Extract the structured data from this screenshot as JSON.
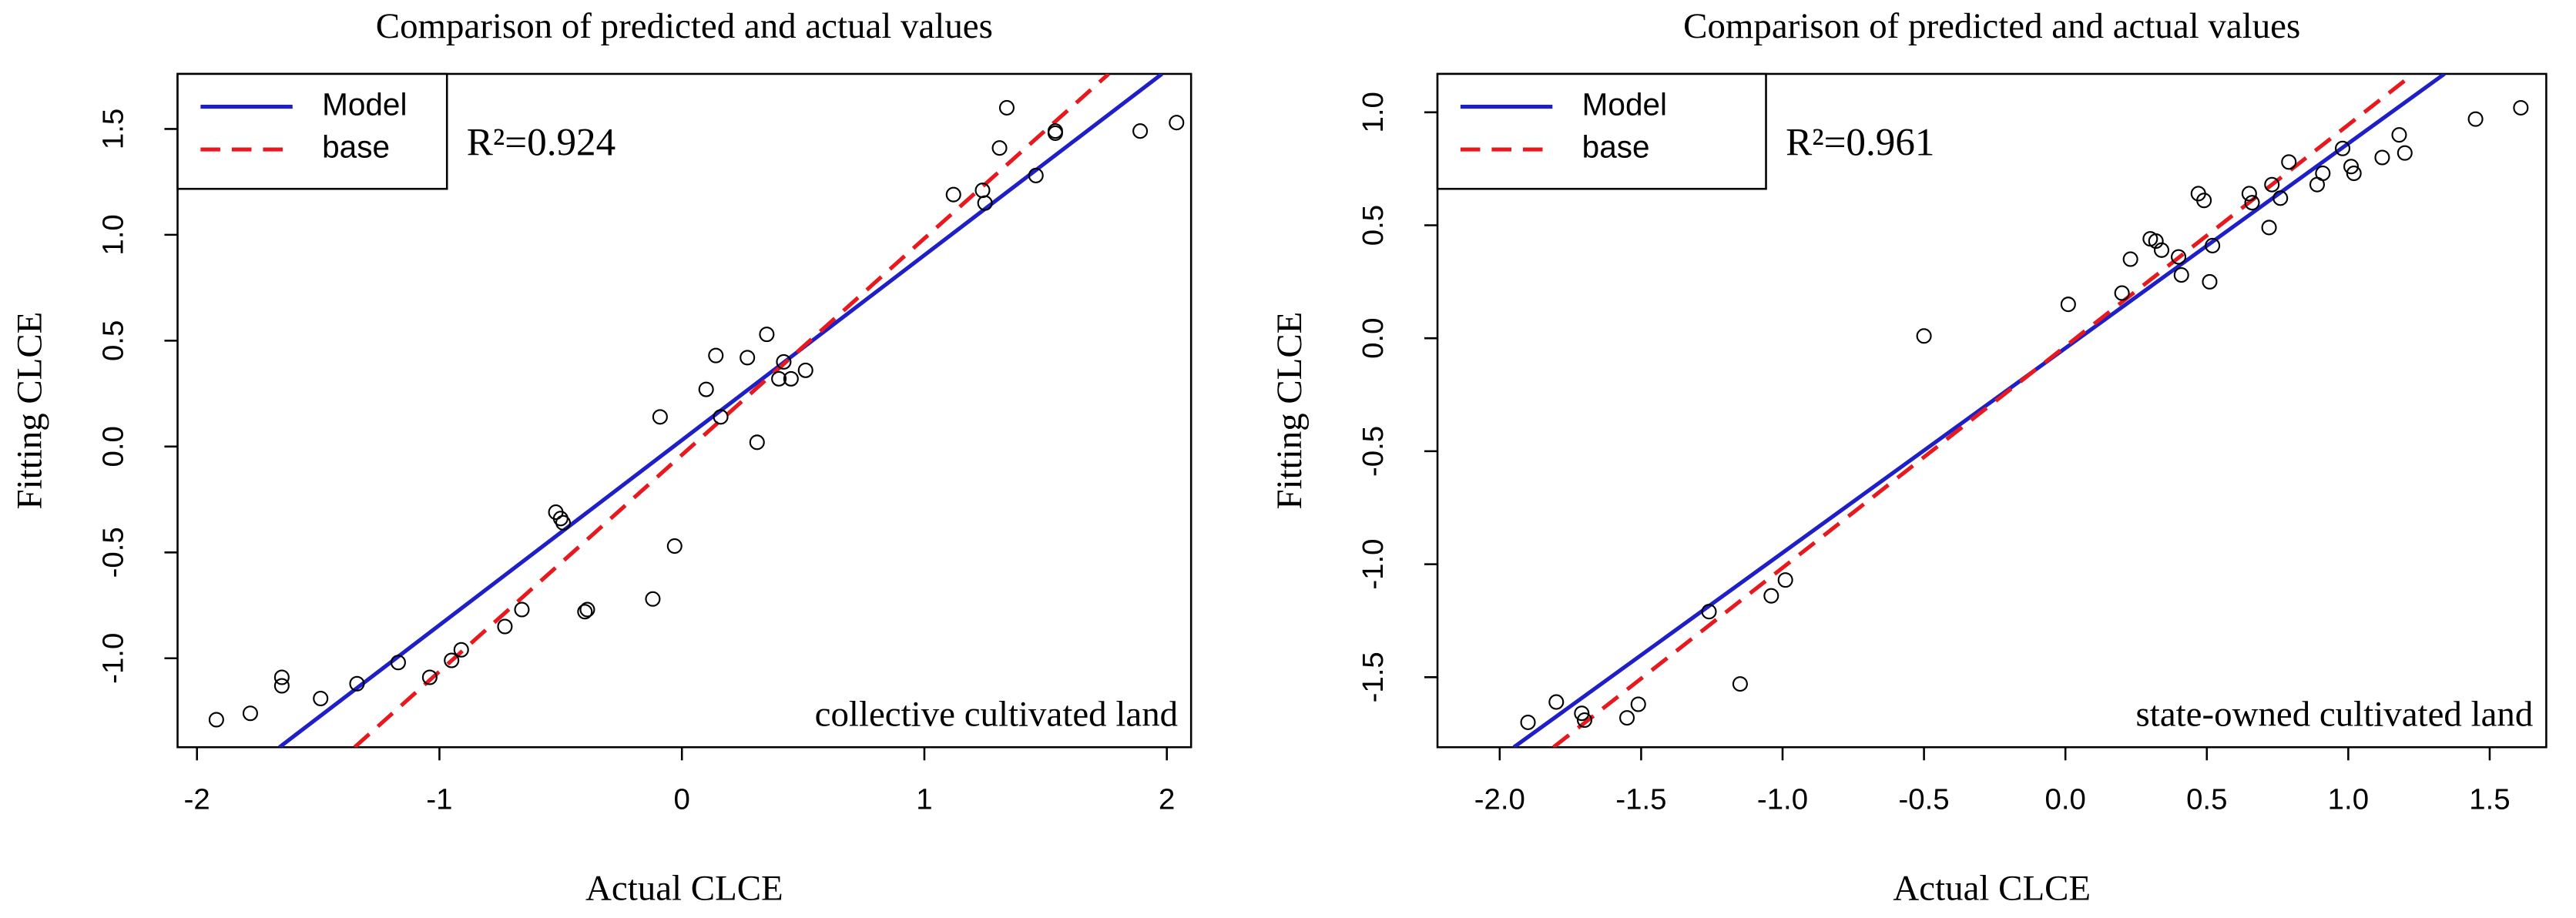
{
  "chart_data": [
    {
      "type": "scatter",
      "title": "Comparison of predicted and actual values",
      "xlabel": "Actual CLCE",
      "ylabel": "Fitting CLCE",
      "annotation": "R²=0.924",
      "note": "collective cultivated land",
      "xlim": [
        -2.08,
        2.1
      ],
      "ylim": [
        -1.42,
        1.76
      ],
      "xticks": [
        -2,
        -1,
        0,
        1,
        2
      ],
      "yticks": [
        {
          "value": -1,
          "label": "-1.0"
        },
        -0.5,
        {
          "value": 0,
          "label": "0.0"
        },
        0.5,
        {
          "value": 1,
          "label": "1.0"
        },
        1.5
      ],
      "legend": "upper left",
      "points": {
        "x": [
          -1.92,
          -1.78,
          -1.65,
          -1.65,
          -1.49,
          -1.34,
          -1.17,
          -1.04,
          -0.95,
          -0.91,
          -0.73,
          -0.66,
          -0.52,
          -0.5,
          -0.49,
          -0.4,
          -0.39,
          -0.12,
          -0.09,
          -0.03,
          0.1,
          0.14,
          0.16,
          0.27,
          0.31,
          0.35,
          0.4,
          0.42,
          0.45,
          0.51,
          1.12,
          1.24,
          1.25,
          1.31,
          1.34,
          1.46,
          1.54,
          1.54,
          1.89,
          2.04
        ],
        "y": [
          -1.29,
          -1.26,
          -1.09,
          -1.13,
          -1.19,
          -1.12,
          -1.02,
          -1.09,
          -1.01,
          -0.96,
          -0.85,
          -0.77,
          -0.31,
          -0.34,
          -0.36,
          -0.78,
          -0.77,
          -0.72,
          0.14,
          -0.47,
          0.27,
          0.43,
          0.14,
          0.42,
          0.02,
          0.53,
          0.32,
          0.4,
          0.32,
          0.36,
          1.19,
          1.21,
          1.15,
          1.41,
          1.6,
          1.28,
          1.48,
          1.49,
          1.49,
          1.53
        ]
      },
      "series": [
        {
          "name": "Model",
          "color": "#1f1fc8",
          "dashed": false,
          "x": [
            -1.66,
            1.98
          ],
          "values": [
            -1.42,
            1.76
          ]
        },
        {
          "name": "base",
          "color": "#e8191e",
          "dashed": true,
          "x": [
            -1.35,
            1.76
          ],
          "values": [
            -1.42,
            1.76
          ]
        }
      ]
    },
    {
      "type": "scatter",
      "title": "Comparison of predicted and actual values",
      "xlabel": "Actual CLCE",
      "ylabel": "Fitting CLCE",
      "annotation": "R²=0.961",
      "note": "state-owned cultivated land",
      "xlim": [
        -2.22,
        1.7
      ],
      "ylim": [
        -1.81,
        1.17
      ],
      "xticks": [
        {
          "value": -2,
          "label": "-2.0"
        },
        -1.5,
        {
          "value": -1,
          "label": "-1.0"
        },
        -0.5,
        {
          "value": 0,
          "label": "0.0"
        },
        0.5,
        {
          "value": 1,
          "label": "1.0"
        },
        1.5
      ],
      "yticks": [
        -1.5,
        {
          "value": -1,
          "label": "-1.0"
        },
        -0.5,
        {
          "value": 0,
          "label": "0.0"
        },
        0.5,
        {
          "value": 1,
          "label": "1.0"
        }
      ],
      "legend": "upper left",
      "points": {
        "x": [
          -1.9,
          -1.8,
          -1.71,
          -1.7,
          -1.55,
          -1.51,
          -1.26,
          -1.15,
          -1.04,
          -0.99,
          -0.5,
          0.01,
          0.2,
          0.23,
          0.3,
          0.32,
          0.34,
          0.4,
          0.41,
          0.47,
          0.49,
          0.51,
          0.52,
          0.65,
          0.66,
          0.72,
          0.73,
          0.76,
          0.79,
          0.89,
          0.91,
          0.98,
          1.01,
          1.02,
          1.12,
          1.18,
          1.2,
          1.45,
          1.61
        ],
        "y": [
          -1.7,
          -1.61,
          -1.66,
          -1.69,
          -1.68,
          -1.62,
          -1.21,
          -1.53,
          -1.14,
          -1.07,
          0.01,
          0.15,
          0.2,
          0.35,
          0.44,
          0.43,
          0.39,
          0.36,
          0.28,
          0.64,
          0.61,
          0.25,
          0.41,
          0.64,
          0.6,
          0.49,
          0.68,
          0.62,
          0.78,
          0.68,
          0.73,
          0.84,
          0.76,
          0.73,
          0.8,
          0.9,
          0.82,
          0.97,
          1.02
        ]
      },
      "series": [
        {
          "name": "Model",
          "color": "#1f1fc8",
          "dashed": false,
          "x": [
            -1.95,
            1.34
          ],
          "values": [
            -1.81,
            1.17
          ]
        },
        {
          "name": "base",
          "color": "#e8191e",
          "dashed": true,
          "x": [
            -1.81,
            1.23
          ],
          "values": [
            -1.81,
            1.17
          ]
        }
      ]
    }
  ]
}
